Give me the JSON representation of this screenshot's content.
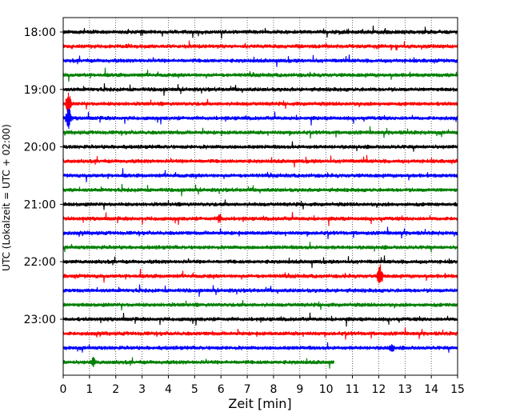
{
  "chart_data": {
    "type": "line",
    "title": "",
    "xlabel": "Zeit  [min]",
    "ylabel": "UTC (Lokalzeit = UTC + 02:00)",
    "xlim": [
      0,
      15
    ],
    "x_ticks": [
      "0",
      "1",
      "2",
      "3",
      "4",
      "5",
      "6",
      "7",
      "8",
      "9",
      "10",
      "11",
      "12",
      "13",
      "14",
      "15"
    ],
    "y_ticks": [
      "18:00",
      "19:00",
      "20:00",
      "21:00",
      "22:00",
      "23:00"
    ],
    "grid": {
      "vertical": true,
      "style": "dotted"
    },
    "trace_interval_min": 15,
    "series_colors": [
      "#000000",
      "#ff0000",
      "#0000ff",
      "#008000"
    ],
    "traces": [
      {
        "start": "18:00",
        "end_min": 15
      },
      {
        "start": "18:15",
        "end_min": 15
      },
      {
        "start": "18:30",
        "end_min": 15
      },
      {
        "start": "18:45",
        "end_min": 15
      },
      {
        "start": "19:00",
        "end_min": 15
      },
      {
        "start": "19:15",
        "end_min": 15
      },
      {
        "start": "19:30",
        "end_min": 15
      },
      {
        "start": "19:45",
        "end_min": 15
      },
      {
        "start": "20:00",
        "end_min": 15
      },
      {
        "start": "20:15",
        "end_min": 15
      },
      {
        "start": "20:30",
        "end_min": 15
      },
      {
        "start": "20:45",
        "end_min": 15
      },
      {
        "start": "21:00",
        "end_min": 15
      },
      {
        "start": "21:15",
        "end_min": 15
      },
      {
        "start": "21:30",
        "end_min": 15
      },
      {
        "start": "21:45",
        "end_min": 15
      },
      {
        "start": "22:00",
        "end_min": 15
      },
      {
        "start": "22:15",
        "end_min": 15
      },
      {
        "start": "22:30",
        "end_min": 15
      },
      {
        "start": "22:45",
        "end_min": 15
      },
      {
        "start": "23:00",
        "end_min": 15
      },
      {
        "start": "23:15",
        "end_min": 15
      },
      {
        "start": "23:30",
        "end_min": 15
      },
      {
        "start": "23:45",
        "end_min": 10.3
      }
    ],
    "events": [
      {
        "trace": "19:15",
        "x": 0.2,
        "amplitude": "large"
      },
      {
        "trace": "19:30",
        "x": 0.2,
        "amplitude": "large"
      },
      {
        "trace": "21:15",
        "x": 5.95,
        "amplitude": "medium"
      },
      {
        "trace": "22:15",
        "x": 12.05,
        "amplitude": "large"
      },
      {
        "trace": "23:30",
        "x": 12.5,
        "amplitude": "medium"
      },
      {
        "trace": "23:45",
        "x": 1.15,
        "amplitude": "medium"
      }
    ]
  }
}
